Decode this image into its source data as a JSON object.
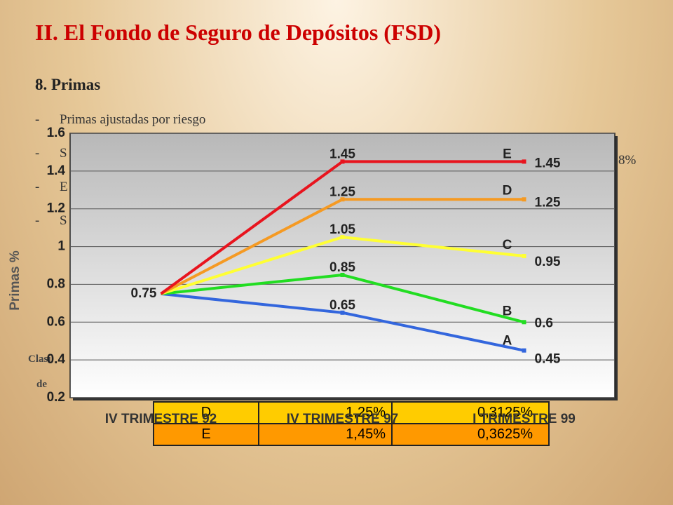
{
  "slide": {
    "title": "II. El Fondo de Seguro de Depósitos (FSD)",
    "section": "8. Primas",
    "bullets": [
      "Primas ajustadas por riesgo",
      "S",
      "E",
      "S"
    ],
    "right_fragment": "8%",
    "left_fragments": [
      "Clasi",
      "de"
    ]
  },
  "table": {
    "rows": [
      [
        "D",
        "1,25%",
        "0,3125%"
      ],
      [
        "E",
        "1,45%",
        "0,3625%"
      ]
    ]
  },
  "chart_data": {
    "type": "line",
    "y_label": "Primas %",
    "categories": [
      "IV TRIMESTRE 92",
      "IV TRIMESTRE 97",
      "I TRIMESTRE 99"
    ],
    "series": [
      {
        "name": "A",
        "color": "#3366dd",
        "values": [
          0.75,
          0.65,
          0.45
        ]
      },
      {
        "name": "B",
        "color": "#22dd22",
        "values": [
          0.75,
          0.85,
          0.6
        ]
      },
      {
        "name": "C",
        "color": "#ffff33",
        "values": [
          0.75,
          1.05,
          0.95
        ]
      },
      {
        "name": "D",
        "color": "#f59a23",
        "values": [
          0.75,
          1.25,
          1.25
        ]
      },
      {
        "name": "E",
        "color": "#e8141e",
        "values": [
          0.75,
          1.45,
          1.45
        ]
      }
    ],
    "ylim": [
      0.2,
      1.6
    ],
    "yticks": [
      0.2,
      0.4,
      0.6,
      0.8,
      1,
      1.2,
      1.4,
      1.6
    ],
    "grid": true
  }
}
